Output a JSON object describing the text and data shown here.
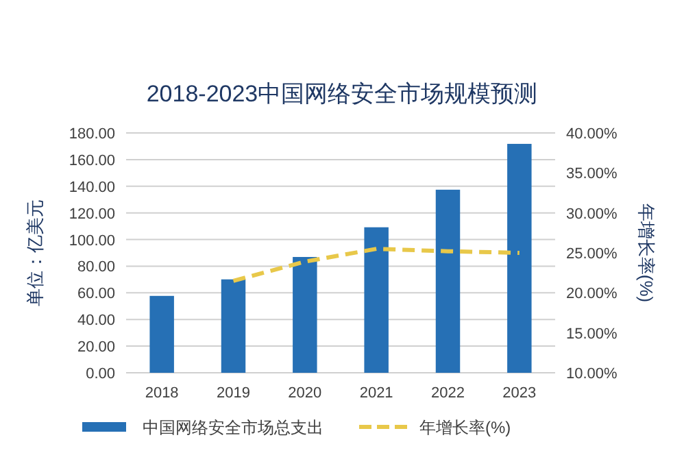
{
  "chart_data": {
    "type": "bar",
    "title": "2018-2023中国网络安全市场规模预测",
    "ylabel": "单位：亿美元",
    "y2label": "年增长率(%)",
    "categories": [
      "2018",
      "2019",
      "2020",
      "2021",
      "2022",
      "2023"
    ],
    "series": [
      {
        "name": "中国网络安全市场总支出",
        "color": "#2670b5",
        "values": [
          57.7,
          70.1,
          86.9,
          109.2,
          137.4,
          171.8
        ]
      },
      {
        "name": "年增长率(%)",
        "type": "line",
        "axis": "y2",
        "color": "#e8c84a",
        "line_style": "dashed",
        "marker": "none",
        "values": [
          null,
          21.5,
          23.9,
          25.5,
          25.2,
          25.0
        ]
      }
    ],
    "ylim": [
      0,
      180
    ],
    "yticks": [
      {
        "value": 0,
        "label": "0.00"
      },
      {
        "value": 20,
        "label": "20.00"
      },
      {
        "value": 40,
        "label": "40.00"
      },
      {
        "value": 60,
        "label": "60.00"
      },
      {
        "value": 80,
        "label": "80.00"
      },
      {
        "value": 100,
        "label": "100.00"
      },
      {
        "value": 120,
        "label": "120.00"
      },
      {
        "value": 140,
        "label": "140.00"
      },
      {
        "value": 160,
        "label": "160.00"
      },
      {
        "value": 180,
        "label": "180.00"
      }
    ],
    "y2lim": [
      10,
      40
    ],
    "y2ticks": [
      {
        "value": 10,
        "label": "10.00%"
      },
      {
        "value": 15,
        "label": "15.00%"
      },
      {
        "value": 20,
        "label": "20.00%"
      },
      {
        "value": 25,
        "label": "25.00%"
      },
      {
        "value": 30,
        "label": "30.00%"
      },
      {
        "value": 35,
        "label": "35.00%"
      },
      {
        "value": 40,
        "label": "40.00%"
      }
    ],
    "grid": "y",
    "legend": "bottom"
  }
}
